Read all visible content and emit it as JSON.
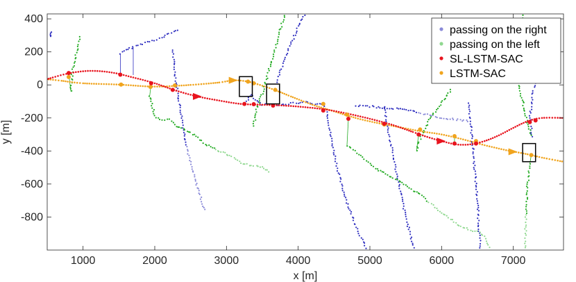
{
  "chart_data": {
    "type": "scatter",
    "xlabel": "x [m]",
    "ylabel": "y [m]",
    "xlim": [
      500,
      7700
    ],
    "ylim": [
      -1000,
      430
    ],
    "xticks": [
      1000,
      2000,
      3000,
      4000,
      5000,
      6000,
      7000
    ],
    "yticks": [
      400,
      200,
      0,
      -200,
      -400,
      -600,
      -800
    ],
    "grid": false,
    "legend_position": "top-right",
    "colors": {
      "right": "#2e2ebf",
      "right_light": "#8a8ad8",
      "left": "#22aa22",
      "left_light": "#90d890",
      "sl": "#e8141e",
      "lstm": "#f0a41e",
      "box": "#000000"
    },
    "legend": [
      {
        "label": "passing on the right",
        "series": "right"
      },
      {
        "label": "passing on the left",
        "series": "left"
      },
      {
        "label": "SL-LSTM-SAC",
        "series": "sl"
      },
      {
        "label": "LSTM-SAC",
        "series": "lstm"
      }
    ],
    "sl_path": [
      [
        500,
        35
      ],
      [
        800,
        70
      ],
      [
        1100,
        85
      ],
      [
        1400,
        75
      ],
      [
        1700,
        45
      ],
      [
        2000,
        10
      ],
      [
        2300,
        -35
      ],
      [
        2600,
        -70
      ],
      [
        2900,
        -95
      ],
      [
        3200,
        -115
      ],
      [
        3500,
        -120
      ],
      [
        3800,
        -125
      ],
      [
        4100,
        -135
      ],
      [
        4400,
        -150
      ],
      [
        4700,
        -175
      ],
      [
        5000,
        -205
      ],
      [
        5300,
        -240
      ],
      [
        5600,
        -285
      ],
      [
        5800,
        -315
      ],
      [
        6000,
        -340
      ],
      [
        6200,
        -360
      ],
      [
        6400,
        -360
      ],
      [
        6600,
        -340
      ],
      [
        6800,
        -305
      ],
      [
        7000,
        -260
      ],
      [
        7200,
        -220
      ],
      [
        7400,
        -200
      ],
      [
        7700,
        -200
      ]
    ],
    "sl_markers": [
      [
        800,
        72
      ],
      [
        1520,
        62
      ],
      [
        1950,
        10
      ],
      [
        2250,
        -30
      ],
      [
        3250,
        -115
      ],
      [
        3380,
        -117
      ],
      [
        3650,
        -125
      ],
      [
        4350,
        -155
      ],
      [
        4700,
        -205
      ],
      [
        5200,
        -235
      ],
      [
        5680,
        -300
      ],
      [
        6180,
        -355
      ],
      [
        6480,
        -355
      ],
      [
        7230,
        -225
      ],
      [
        7310,
        -215
      ]
    ],
    "sl_arrows": [
      [
        2600,
        -70
      ],
      [
        6000,
        -340
      ]
    ],
    "lstm_path": [
      [
        500,
        35
      ],
      [
        700,
        25
      ],
      [
        1000,
        10
      ],
      [
        1500,
        2
      ],
      [
        2000,
        -10
      ],
      [
        2500,
        0
      ],
      [
        2900,
        15
      ],
      [
        3100,
        28
      ],
      [
        3300,
        20
      ],
      [
        3500,
        -5
      ],
      [
        3700,
        -35
      ],
      [
        3900,
        -70
      ],
      [
        4200,
        -120
      ],
      [
        4500,
        -160
      ],
      [
        4800,
        -200
      ],
      [
        5100,
        -230
      ],
      [
        5400,
        -255
      ],
      [
        5700,
        -280
      ],
      [
        6000,
        -300
      ],
      [
        6300,
        -330
      ],
      [
        6600,
        -365
      ],
      [
        6900,
        -395
      ],
      [
        7200,
        -420
      ],
      [
        7400,
        -440
      ],
      [
        7700,
        -465
      ]
    ],
    "lstm_markers": [
      [
        800,
        48
      ],
      [
        1530,
        2
      ],
      [
        1940,
        -12
      ],
      [
        2280,
        -3
      ],
      [
        3300,
        20
      ],
      [
        3380,
        10
      ],
      [
        3680,
        -30
      ],
      [
        4350,
        -115
      ],
      [
        4680,
        -180
      ],
      [
        5200,
        -240
      ],
      [
        5700,
        -270
      ],
      [
        6180,
        -310
      ],
      [
        6480,
        -340
      ],
      [
        7250,
        -425
      ]
    ],
    "lstm_arrows": [
      [
        3100,
        28
      ],
      [
        7000,
        -405
      ]
    ],
    "right_tracks": [
      [
        [
          550,
          300
        ],
        [
          560,
          320
        ],
        [
          540,
          280
        ]
      ],
      [
        [
          1520,
          190
        ],
        [
          1600,
          210
        ],
        [
          1700,
          230
        ],
        [
          1800,
          245
        ],
        [
          1900,
          260
        ],
        [
          2000,
          272
        ],
        [
          2100,
          285
        ],
        [
          2200,
          310
        ],
        [
          2350,
          340
        ]
      ],
      [
        [
          2250,
          210
        ],
        [
          2280,
          80
        ],
        [
          2320,
          -50
        ],
        [
          2370,
          -180
        ],
        [
          2420,
          -310
        ],
        [
          2480,
          -440
        ],
        [
          2560,
          -570
        ],
        [
          2640,
          -680
        ],
        [
          2700,
          -770
        ]
      ],
      [
        [
          3280,
          -100
        ],
        [
          3350,
          -60
        ],
        [
          3420,
          -100
        ],
        [
          3500,
          -120
        ],
        [
          3600,
          -120
        ],
        [
          3700,
          -120
        ],
        [
          3800,
          -120
        ],
        [
          3900,
          -110
        ],
        [
          4000,
          -110
        ],
        [
          4100,
          -100
        ],
        [
          4200,
          -115
        ],
        [
          4300,
          -115
        ],
        [
          4400,
          -130
        ]
      ],
      [
        [
          3700,
          20
        ],
        [
          3800,
          140
        ],
        [
          3920,
          270
        ],
        [
          4050,
          400
        ],
        [
          4130,
          430
        ]
      ],
      [
        [
          4400,
          -150
        ],
        [
          4450,
          -300
        ],
        [
          4520,
          -450
        ],
        [
          4600,
          -600
        ],
        [
          4720,
          -760
        ],
        [
          4850,
          -900
        ],
        [
          4960,
          -1000
        ]
      ],
      [
        [
          4800,
          -125
        ],
        [
          5000,
          -130
        ],
        [
          5200,
          -140
        ],
        [
          5400,
          -145
        ],
        [
          5600,
          -160
        ],
        [
          5800,
          -180
        ],
        [
          6000,
          -200
        ],
        [
          6200,
          -210
        ],
        [
          6400,
          -220
        ]
      ],
      [
        [
          5200,
          -130
        ],
        [
          5260,
          -290
        ],
        [
          5330,
          -440
        ],
        [
          5400,
          -590
        ],
        [
          5480,
          -760
        ],
        [
          5570,
          -920
        ],
        [
          5620,
          -1000
        ]
      ],
      [
        [
          6380,
          -110
        ],
        [
          6420,
          -300
        ],
        [
          6460,
          -500
        ],
        [
          6500,
          -700
        ],
        [
          6520,
          -860
        ],
        [
          6540,
          -1000
        ]
      ],
      [
        [
          7300,
          10
        ],
        [
          7270,
          -60
        ],
        [
          7250,
          -130
        ],
        [
          7230,
          -200
        ],
        [
          7250,
          -260
        ],
        [
          7260,
          -330
        ]
      ]
    ],
    "left_tracks": [
      [
        [
          830,
          -40
        ],
        [
          850,
          80
        ],
        [
          900,
          180
        ],
        [
          960,
          300
        ]
      ],
      [
        [
          1930,
          -65
        ],
        [
          2000,
          -190
        ],
        [
          2100,
          -210
        ],
        [
          2200,
          -210
        ],
        [
          2300,
          -250
        ],
        [
          2400,
          -270
        ],
        [
          2500,
          -290
        ],
        [
          2600,
          -320
        ],
        [
          2700,
          -360
        ],
        [
          2800,
          -380
        ],
        [
          2900,
          -400
        ],
        [
          3000,
          -420
        ],
        [
          3100,
          -440
        ],
        [
          3200,
          -470
        ],
        [
          3350,
          -490
        ],
        [
          3450,
          -490
        ],
        [
          3550,
          -510
        ],
        [
          3620,
          -530
        ]
      ],
      [
        [
          3380,
          -250
        ],
        [
          3420,
          -150
        ],
        [
          3500,
          -50
        ],
        [
          3580,
          70
        ],
        [
          3650,
          170
        ],
        [
          3720,
          280
        ],
        [
          3780,
          380
        ],
        [
          3820,
          430
        ]
      ],
      [
        [
          4680,
          -370
        ],
        [
          4800,
          -400
        ],
        [
          4900,
          -440
        ],
        [
          5000,
          -480
        ],
        [
          5100,
          -510
        ],
        [
          5200,
          -530
        ],
        [
          5300,
          -560
        ],
        [
          5400,
          -580
        ],
        [
          5500,
          -610
        ],
        [
          5600,
          -640
        ],
        [
          5700,
          -660
        ],
        [
          5800,
          -700
        ],
        [
          5900,
          -740
        ],
        [
          6000,
          -780
        ],
        [
          6100,
          -800
        ],
        [
          6200,
          -840
        ],
        [
          6300,
          -860
        ],
        [
          6400,
          -880
        ],
        [
          6500,
          -890
        ],
        [
          6600,
          -920
        ],
        [
          6680,
          -1000
        ]
      ],
      [
        [
          5650,
          -400
        ],
        [
          5700,
          -330
        ],
        [
          5780,
          -250
        ],
        [
          5850,
          -190
        ],
        [
          5930,
          -150
        ],
        [
          6000,
          -110
        ],
        [
          6080,
          -60
        ],
        [
          6150,
          -20
        ]
      ],
      [
        [
          7230,
          -480
        ],
        [
          7200,
          -600
        ],
        [
          7180,
          -750
        ],
        [
          7170,
          -900
        ],
        [
          7160,
          -1000
        ]
      ],
      [
        [
          7250,
          -300
        ],
        [
          7180,
          -200
        ],
        [
          7130,
          -100
        ],
        [
          7100,
          -50
        ],
        [
          7050,
          50
        ],
        [
          7050,
          200
        ],
        [
          7080,
          300
        ],
        [
          7150,
          430
        ]
      ]
    ],
    "right_links": [
      [
        [
          1520,
          190
        ],
        [
          1520,
          62
        ]
      ],
      [
        [
          1700,
          230
        ],
        [
          1700,
          60
        ]
      ]
    ],
    "left_links": [
      [
        [
          830,
          -40
        ],
        [
          800,
          72
        ]
      ],
      [
        [
          1930,
          -65
        ],
        [
          1950,
          10
        ]
      ],
      [
        [
          4680,
          -370
        ],
        [
          4700,
          -205
        ]
      ],
      [
        [
          5650,
          -400
        ],
        [
          5680,
          -300
        ]
      ],
      [
        [
          6180,
          -310
        ],
        [
          6180,
          -355
        ]
      ],
      [
        [
          7230,
          -480
        ],
        [
          7250,
          -425
        ]
      ]
    ],
    "boxes": [
      [
        [
          3180,
          50
        ],
        [
          3360,
          -70
        ]
      ],
      [
        [
          3560,
          5
        ],
        [
          3740,
          -115
        ]
      ],
      [
        [
          7130,
          -355
        ],
        [
          7310,
          -465
        ]
      ]
    ]
  }
}
